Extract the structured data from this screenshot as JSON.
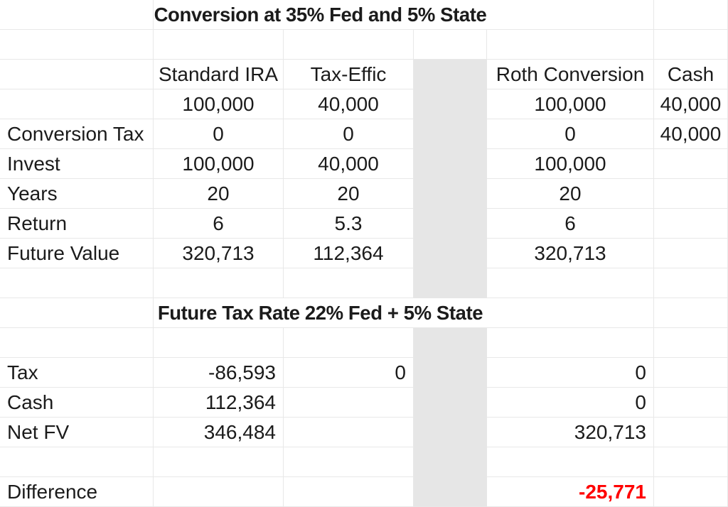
{
  "colors": {
    "spacer_band": "#e6e6e6",
    "gridline": "#e8e8e8",
    "negative_difference_red": "#ff0000",
    "text": "#1b1b1b"
  },
  "sheet": {
    "section1_title": "Conversion at 35% Fed and 5% State",
    "section2_title": "Future Tax Rate 22% Fed + 5% State",
    "column_headers": {
      "standard_ira": "Standard IRA",
      "tax_effic": "Tax-Effic",
      "roth_conversion": "Roth Conversion",
      "cash": "Cash"
    },
    "section1_rows": [
      {
        "label": "",
        "standard_ira": "100,000",
        "tax_effic": "40,000",
        "roth_conversion": "100,000",
        "cash": "40,000"
      },
      {
        "label": "Conversion Tax",
        "standard_ira": "0",
        "tax_effic": "0",
        "roth_conversion": "0",
        "cash": "40,000"
      },
      {
        "label": "Invest",
        "standard_ira": "100,000",
        "tax_effic": "40,000",
        "roth_conversion": "100,000",
        "cash": ""
      },
      {
        "label": "Years",
        "standard_ira": "20",
        "tax_effic": "20",
        "roth_conversion": "20",
        "cash": ""
      },
      {
        "label": "Return",
        "standard_ira": "6",
        "tax_effic": "5.3",
        "roth_conversion": "6",
        "cash": ""
      },
      {
        "label": "Future Value",
        "standard_ira": "320,713",
        "tax_effic": "112,364",
        "roth_conversion": "320,713",
        "cash": ""
      }
    ],
    "section2_rows": [
      {
        "label": "Tax",
        "standard_ira": "-86,593",
        "tax_effic": "0",
        "roth_conversion": "0",
        "cash": ""
      },
      {
        "label": "Cash",
        "standard_ira": "112,364",
        "tax_effic": "",
        "roth_conversion": "0",
        "cash": ""
      },
      {
        "label": "Net FV",
        "standard_ira": "346,484",
        "tax_effic": "",
        "roth_conversion": "320,713",
        "cash": ""
      }
    ],
    "difference_row": {
      "label": "Difference",
      "roth_conversion": "-25,771"
    }
  }
}
